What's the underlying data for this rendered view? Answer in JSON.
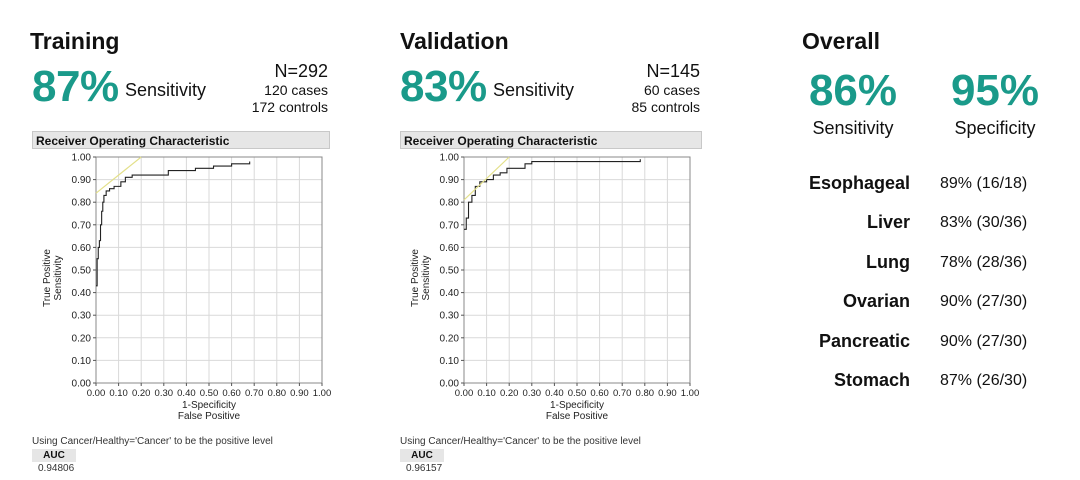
{
  "training": {
    "title": "Training",
    "sensitivity": "87%",
    "sensitivity_label": "Sensitivity",
    "n": "N=292",
    "cases": "120 cases",
    "controls": "172 controls",
    "roc_title": "Receiver Operating Characteristic",
    "positive_note": "Using Cancer/Healthy='Cancer' to be the positive level",
    "auc_label": "AUC",
    "auc_value": "0.94806"
  },
  "validation": {
    "title": "Validation",
    "sensitivity": "83%",
    "sensitivity_label": "Sensitivity",
    "n": "N=145",
    "cases": "60 cases",
    "controls": "85 controls",
    "roc_title": "Receiver Operating Characteristic",
    "positive_note": "Using Cancer/Healthy='Cancer' to be the positive level",
    "auc_label": "AUC",
    "auc_value": "0.96157"
  },
  "overall": {
    "title": "Overall",
    "sensitivity": "86%",
    "sensitivity_label": "Sensitivity",
    "specificity": "95%",
    "specificity_label": "Specificity",
    "cancers": [
      {
        "name": "Esophageal",
        "value": "89% (16/18)"
      },
      {
        "name": "Liver",
        "value": "83% (30/36)"
      },
      {
        "name": "Lung",
        "value": "78% (28/36)"
      },
      {
        "name": "Ovarian",
        "value": "90% (27/30)"
      },
      {
        "name": "Pancreatic",
        "value": "90% (27/30)"
      },
      {
        "name": "Stomach",
        "value": "87% (26/30)"
      }
    ]
  },
  "colors": {
    "accent": "#1a9a8a",
    "roc_line": "#222222",
    "tangent": "#e3e08a",
    "grid": "#d9d9d9"
  },
  "chart_data": [
    {
      "type": "line",
      "title": "Receiver Operating Characteristic",
      "xlabel": "1-Specificity",
      "xlabel2": "False Positive",
      "ylabel": "Sensitivity",
      "ylabel2": "True Positive",
      "xlim": [
        0,
        1
      ],
      "ylim": [
        0,
        1
      ],
      "xticks": [
        "0.00",
        "0.10",
        "0.20",
        "0.30",
        "0.40",
        "0.50",
        "0.60",
        "0.70",
        "0.80",
        "0.90",
        "1.00"
      ],
      "yticks": [
        "0.00",
        "0.10",
        "0.20",
        "0.30",
        "0.40",
        "0.50",
        "0.60",
        "0.70",
        "0.80",
        "0.90",
        "1.00"
      ],
      "series": [
        {
          "name": "Training ROC",
          "points": [
            [
              0,
              0.43
            ],
            [
              0.005,
              0.43
            ],
            [
              0.005,
              0.55
            ],
            [
              0.01,
              0.55
            ],
            [
              0.01,
              0.6
            ],
            [
              0.015,
              0.6
            ],
            [
              0.015,
              0.63
            ],
            [
              0.02,
              0.63
            ],
            [
              0.02,
              0.7
            ],
            [
              0.025,
              0.7
            ],
            [
              0.025,
              0.76
            ],
            [
              0.03,
              0.76
            ],
            [
              0.03,
              0.8
            ],
            [
              0.035,
              0.8
            ],
            [
              0.035,
              0.83
            ],
            [
              0.045,
              0.83
            ],
            [
              0.045,
              0.85
            ],
            [
              0.06,
              0.85
            ],
            [
              0.06,
              0.86
            ],
            [
              0.08,
              0.86
            ],
            [
              0.08,
              0.87
            ],
            [
              0.11,
              0.87
            ],
            [
              0.11,
              0.89
            ],
            [
              0.13,
              0.89
            ],
            [
              0.13,
              0.91
            ],
            [
              0.16,
              0.91
            ],
            [
              0.16,
              0.92
            ],
            [
              0.32,
              0.92
            ],
            [
              0.32,
              0.94
            ],
            [
              0.44,
              0.94
            ],
            [
              0.44,
              0.95
            ],
            [
              0.52,
              0.95
            ],
            [
              0.52,
              0.96
            ],
            [
              0.6,
              0.96
            ],
            [
              0.6,
              0.97
            ],
            [
              0.68,
              0.97
            ],
            [
              0.68,
              0.98
            ]
          ]
        },
        {
          "name": "Training tangent",
          "points": [
            [
              0,
              0.84
            ],
            [
              0.2,
              1.0
            ]
          ]
        }
      ]
    },
    {
      "type": "line",
      "title": "Receiver Operating Characteristic",
      "xlabel": "1-Specificity",
      "xlabel2": "False Positive",
      "ylabel": "Sensitivity",
      "ylabel2": "True Positive",
      "xlim": [
        0,
        1
      ],
      "ylim": [
        0,
        1
      ],
      "xticks": [
        "0.00",
        "0.10",
        "0.20",
        "0.30",
        "0.40",
        "0.50",
        "0.60",
        "0.70",
        "0.80",
        "0.90",
        "1.00"
      ],
      "yticks": [
        "0.00",
        "0.10",
        "0.20",
        "0.30",
        "0.40",
        "0.50",
        "0.60",
        "0.70",
        "0.80",
        "0.90",
        "1.00"
      ],
      "series": [
        {
          "name": "Validation ROC",
          "points": [
            [
              0,
              0.68
            ],
            [
              0.01,
              0.68
            ],
            [
              0.01,
              0.73
            ],
            [
              0.02,
              0.73
            ],
            [
              0.02,
              0.8
            ],
            [
              0.035,
              0.8
            ],
            [
              0.035,
              0.83
            ],
            [
              0.05,
              0.83
            ],
            [
              0.05,
              0.87
            ],
            [
              0.07,
              0.87
            ],
            [
              0.07,
              0.89
            ],
            [
              0.1,
              0.89
            ],
            [
              0.1,
              0.9
            ],
            [
              0.13,
              0.9
            ],
            [
              0.13,
              0.92
            ],
            [
              0.16,
              0.92
            ],
            [
              0.16,
              0.93
            ],
            [
              0.19,
              0.93
            ],
            [
              0.19,
              0.95
            ],
            [
              0.27,
              0.95
            ],
            [
              0.27,
              0.97
            ],
            [
              0.3,
              0.97
            ],
            [
              0.3,
              0.98
            ],
            [
              0.78,
              0.98
            ],
            [
              0.78,
              0.99
            ]
          ]
        },
        {
          "name": "Validation tangent",
          "points": [
            [
              0,
              0.81
            ],
            [
              0.2,
              1.0
            ]
          ]
        }
      ]
    }
  ]
}
